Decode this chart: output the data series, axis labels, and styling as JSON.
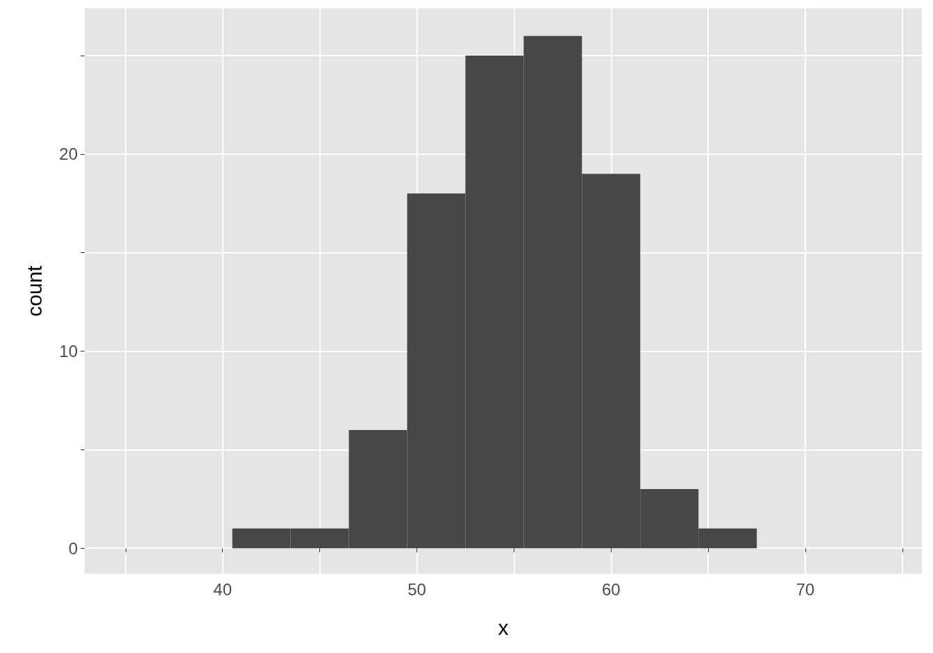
{
  "chart_data": {
    "type": "histogram",
    "xlabel": "x",
    "ylabel": "count",
    "bins": [
      40.5,
      43.5,
      46.5,
      49.5,
      52.5,
      55.5,
      58.5,
      61.5,
      64.5,
      67.5
    ],
    "values": [
      1,
      1,
      6,
      18,
      25,
      26,
      19,
      3,
      1
    ],
    "color": "#474747",
    "xlim": [
      32.9,
      76
    ],
    "ylim": [
      -1.3,
      27.4
    ],
    "xticks": [
      {
        "value": 35,
        "label": null
      },
      40,
      {
        "value": 45,
        "label": null
      },
      50,
      {
        "value": 55,
        "label": null
      },
      60,
      {
        "value": 65,
        "label": null
      },
      70,
      {
        "value": 75,
        "label": null
      }
    ],
    "yticks": [
      0,
      {
        "value": 5,
        "label": null
      },
      10,
      {
        "value": 15,
        "label": null
      },
      20,
      {
        "value": 25,
        "label": null
      }
    ],
    "grid": true
  }
}
